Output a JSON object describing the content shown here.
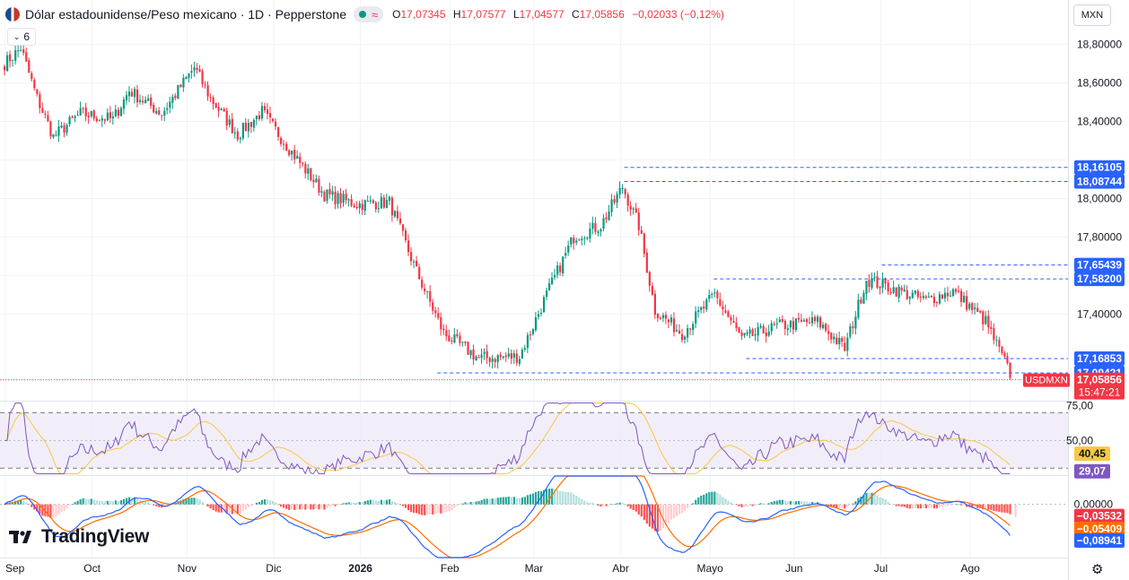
{
  "header": {
    "title": "Dólar estadounidense/Peso mexicano · 1D · Pepperstone",
    "ohlc": {
      "open_label": "O",
      "open": "17,07345",
      "high_label": "H",
      "high": "17,07577",
      "low_label": "L",
      "low": "17,04577",
      "close_label": "C",
      "close": "17,05856",
      "change": "−0,02033 (−0,12%)"
    },
    "indicator_count": "6",
    "currency": "MXN"
  },
  "colors": {
    "up": "#089981",
    "down": "#f23645",
    "blue": "#2962ff",
    "rsi_line": "#7e57c2",
    "rsi_ma": "#f7c845",
    "macd_signal": "#ff6d00",
    "last_price": "#f23645",
    "grid": "#f0f3fa"
  },
  "icons": {
    "flag": "us-mx-flag-icon",
    "settings": "gear-icon",
    "logo": "tradingview-logo-icon"
  },
  "chart_data": [
    {
      "type": "candlestick",
      "symbol": "USDMXN",
      "x_ticks": [
        "Sep",
        "Oct",
        "Nov",
        "Dic",
        "2026",
        "Feb",
        "Mar",
        "Abr",
        "Mayo",
        "Jun",
        "Jul",
        "Ago"
      ],
      "y_ticks": [
        "18,80000",
        "18,60000",
        "18,40000",
        "18,00000",
        "17,80000",
        "17,40000"
      ],
      "ylim": [
        16.95,
        19.03
      ],
      "waypoints": [
        {
          "i": 0,
          "v": 18.7
        },
        {
          "i": 6,
          "v": 18.78
        },
        {
          "i": 12,
          "v": 18.52
        },
        {
          "i": 18,
          "v": 18.32
        },
        {
          "i": 28,
          "v": 18.44
        },
        {
          "i": 40,
          "v": 18.41
        },
        {
          "i": 46,
          "v": 18.56
        },
        {
          "i": 58,
          "v": 18.44
        },
        {
          "i": 70,
          "v": 18.68
        },
        {
          "i": 76,
          "v": 18.52
        },
        {
          "i": 86,
          "v": 18.33
        },
        {
          "i": 95,
          "v": 18.45
        },
        {
          "i": 106,
          "v": 18.24
        },
        {
          "i": 118,
          "v": 18.02
        },
        {
          "i": 130,
          "v": 17.97
        },
        {
          "i": 142,
          "v": 17.98
        },
        {
          "i": 152,
          "v": 17.62
        },
        {
          "i": 162,
          "v": 17.3
        },
        {
          "i": 175,
          "v": 17.17
        },
        {
          "i": 190,
          "v": 17.18
        },
        {
          "i": 200,
          "v": 17.5
        },
        {
          "i": 210,
          "v": 17.8
        },
        {
          "i": 220,
          "v": 17.86
        },
        {
          "i": 228,
          "v": 18.06
        },
        {
          "i": 234,
          "v": 17.86
        },
        {
          "i": 240,
          "v": 17.42
        },
        {
          "i": 250,
          "v": 17.3
        },
        {
          "i": 262,
          "v": 17.5
        },
        {
          "i": 272,
          "v": 17.27
        },
        {
          "i": 286,
          "v": 17.34
        },
        {
          "i": 300,
          "v": 17.36
        },
        {
          "i": 310,
          "v": 17.22
        },
        {
          "i": 318,
          "v": 17.58
        },
        {
          "i": 330,
          "v": 17.52
        },
        {
          "i": 340,
          "v": 17.47
        },
        {
          "i": 350,
          "v": 17.52
        },
        {
          "i": 362,
          "v": 17.36
        },
        {
          "i": 372,
          "v": 17.06
        }
      ],
      "levels": [
        {
          "value": 18.16105,
          "label": "18,16105",
          "start_index": 229
        },
        {
          "value": 18.08744,
          "label": "18,08744",
          "start_index": 229
        },
        {
          "value": 17.65439,
          "label": "17,65439",
          "start_index": 324
        },
        {
          "value": 17.582,
          "label": "17,58200",
          "start_index": 262
        },
        {
          "value": 17.16853,
          "label": "17,16853",
          "start_index": 274
        },
        {
          "value": 17.09421,
          "label": "17,09421",
          "start_index": 160
        }
      ],
      "last_price": {
        "value": 17.05856,
        "label": "17,05856",
        "symbol_label": "USDMXN",
        "countdown": "15:47:21"
      }
    },
    {
      "type": "rsi",
      "y_ticks": [
        "75,00",
        "50,00"
      ],
      "upper_band": 70,
      "lower_band": 30,
      "ylim": [
        25,
        78
      ],
      "rsi_value": "29,07",
      "ma_value": "40,45",
      "rsi_value_num": 29.07,
      "ma_value_num": 40.45
    },
    {
      "type": "macd",
      "y_ticks": [
        "0,00000"
      ],
      "ylim": [
        -0.15,
        0.08
      ],
      "histogram_label": "−0,03532",
      "signal_label": "−0,05409",
      "macd_label": "−0,08941",
      "histogram_value": -0.03532,
      "signal_value": -0.05409,
      "macd_value": -0.08941
    }
  ]
}
